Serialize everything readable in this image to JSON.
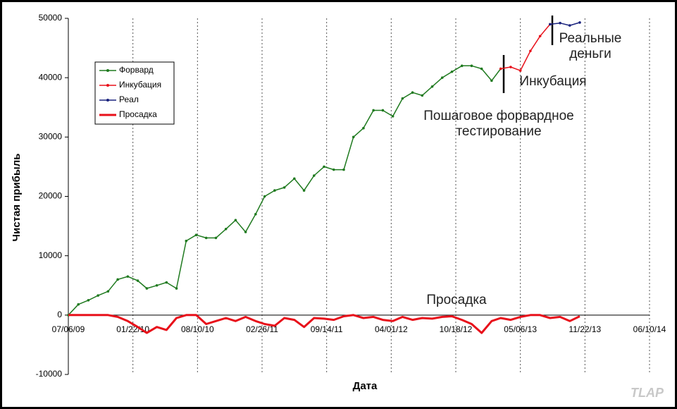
{
  "chart_data": {
    "type": "line",
    "x_label": "Дата",
    "y_label": "Чистая прибыль",
    "x": [
      "2009-07-06",
      "2009-08-06",
      "2009-09-06",
      "2009-10-06",
      "2009-11-06",
      "2009-12-06",
      "2010-01-06",
      "2010-02-06",
      "2010-03-06",
      "2010-04-06",
      "2010-05-06",
      "2010-06-06",
      "2010-07-06",
      "2010-08-06",
      "2010-09-06",
      "2010-10-06",
      "2010-11-06",
      "2010-12-06",
      "2011-01-06",
      "2011-02-06",
      "2011-03-06",
      "2011-04-06",
      "2011-05-06",
      "2011-06-06",
      "2011-07-06",
      "2011-08-06",
      "2011-09-06",
      "2011-10-06",
      "2011-11-06",
      "2011-12-06",
      "2012-01-06",
      "2012-02-06",
      "2012-03-06",
      "2012-04-06",
      "2012-05-06",
      "2012-06-06",
      "2012-07-06",
      "2012-08-06",
      "2012-09-06",
      "2012-10-06",
      "2012-11-06",
      "2012-12-06",
      "2013-01-06",
      "2013-02-06",
      "2013-03-06",
      "2013-04-06",
      "2013-05-06",
      "2013-06-06",
      "2013-07-06",
      "2013-08-06",
      "2013-09-06",
      "2013-10-06",
      "2013-11-06"
    ],
    "series": [
      {
        "name": "Форвард",
        "color": "#1f7a1f",
        "markers": true,
        "values": [
          0,
          1800,
          2500,
          3300,
          4000,
          6000,
          6500,
          5800,
          4500,
          5000,
          5500,
          4500,
          12500,
          13500,
          13000,
          13000,
          14500,
          16000,
          14000,
          17000,
          20000,
          21000,
          21500,
          23000,
          21000,
          23500,
          25000,
          24500,
          24500,
          30000,
          31500,
          34500,
          34500,
          33500,
          36500,
          37500,
          37000,
          38500,
          40000,
          41000,
          42000,
          42000,
          41500,
          39500,
          41500,
          null,
          null,
          null,
          null,
          null,
          null,
          null,
          null
        ]
      },
      {
        "name": "Инкубация",
        "color": "#e8101a",
        "markers": true,
        "values": [
          null,
          null,
          null,
          null,
          null,
          null,
          null,
          null,
          null,
          null,
          null,
          null,
          null,
          null,
          null,
          null,
          null,
          null,
          null,
          null,
          null,
          null,
          null,
          null,
          null,
          null,
          null,
          null,
          null,
          null,
          null,
          null,
          null,
          null,
          null,
          null,
          null,
          null,
          null,
          null,
          null,
          null,
          null,
          null,
          41500,
          41800,
          41200,
          44500,
          47000,
          49000,
          null,
          null,
          null
        ]
      },
      {
        "name": "Реал",
        "color": "#1a237e",
        "markers": true,
        "values": [
          null,
          null,
          null,
          null,
          null,
          null,
          null,
          null,
          null,
          null,
          null,
          null,
          null,
          null,
          null,
          null,
          null,
          null,
          null,
          null,
          null,
          null,
          null,
          null,
          null,
          null,
          null,
          null,
          null,
          null,
          null,
          null,
          null,
          null,
          null,
          null,
          null,
          null,
          null,
          null,
          null,
          null,
          null,
          null,
          null,
          null,
          null,
          null,
          null,
          49000,
          49200,
          48800,
          49300
        ]
      },
      {
        "name": "Просадка",
        "color": "#e8101a",
        "markers": false,
        "values": [
          0,
          0,
          0,
          0,
          0,
          -300,
          -1000,
          -2000,
          -3000,
          -2000,
          -2500,
          -500,
          0,
          0,
          -1500,
          -1000,
          -500,
          -1000,
          -300,
          -1000,
          -1500,
          -1800,
          -500,
          -800,
          -2000,
          -500,
          -600,
          -800,
          -200,
          0,
          -500,
          -300,
          -800,
          -1000,
          -300,
          -800,
          -500,
          -600,
          -300,
          -200,
          -800,
          -1500,
          -3000,
          -1000,
          -500,
          -800,
          -300,
          0,
          0,
          -500,
          -300,
          -1000,
          -200
        ]
      }
    ],
    "xlim": [
      "2009-07-06",
      "2014-06-10"
    ],
    "xticks": [
      {
        "value": "2009-07-06",
        "label": "07/06/09"
      },
      {
        "value": "2010-01-22",
        "label": "01/22/10"
      },
      {
        "value": "2010-08-10",
        "label": "08/10/10"
      },
      {
        "value": "2011-02-26",
        "label": "02/26/11"
      },
      {
        "value": "2011-09-14",
        "label": "09/14/11"
      },
      {
        "value": "2012-04-01",
        "label": "04/01/12"
      },
      {
        "value": "2012-10-18",
        "label": "10/18/12"
      },
      {
        "value": "2013-05-06",
        "label": "05/06/13"
      },
      {
        "value": "2013-11-22",
        "label": "11/22/13"
      },
      {
        "value": "2014-06-10",
        "label": "06/10/14"
      }
    ],
    "ylim": [
      -10000,
      50000
    ],
    "yticks": [
      -10000,
      0,
      10000,
      20000,
      30000,
      40000,
      50000
    ],
    "grid": "x",
    "legend": "upper left",
    "annotations": [
      "Реальные деньги",
      "Инкубация",
      "Пошаговое форвардное тестирование",
      "Просадка"
    ],
    "watermark": "TLAP"
  }
}
